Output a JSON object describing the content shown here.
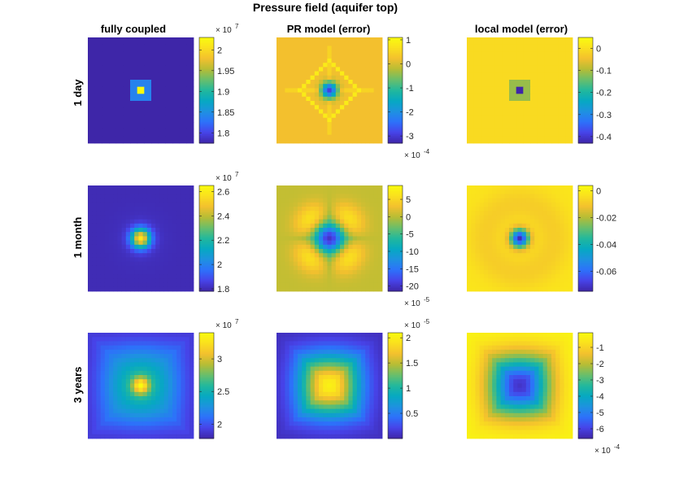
{
  "figure": {
    "title": "Pressure field (aquifer top)",
    "columns": [
      "fully coupled",
      "PR model (error)",
      "local model (error)"
    ],
    "rows": [
      "1 day",
      "1 month",
      "3 years"
    ]
  },
  "colormap": [
    "#3e26a8",
    "#4743e8",
    "#2d71fa",
    "#1e92e0",
    "#06a9c1",
    "#22b89c",
    "#6abe6b",
    "#b7bd34",
    "#f3c02e",
    "#fae01e",
    "#f9fb0e"
  ],
  "chart_data": [
    {
      "type": "heatmap",
      "row": 0,
      "col": 0,
      "title": "fully coupled",
      "row_label": "1 day",
      "grid": 15,
      "pattern": "spike",
      "cmin": 17750000.0,
      "cmax": 20300000.0,
      "ticks": [
        18000000.0,
        18500000.0,
        19000000.0,
        19500000.0,
        20000000.0
      ],
      "tick_labels": [
        "1.8",
        "1.85",
        "1.9",
        "1.95",
        "2"
      ],
      "exponent_label": "× 10",
      "exponent": "7",
      "exponent_pos": "top",
      "field": {
        "base": 0.0,
        "peak": 1.0,
        "sigma": 0.5,
        "ring": 0
      }
    },
    {
      "type": "heatmap",
      "row": 0,
      "col": 1,
      "title": "PR model (error)",
      "row_label": "1 day",
      "grid": 25,
      "pattern": "diamond",
      "cmin": -0.00033,
      "cmax": 0.00011,
      "ticks": [
        -0.0003,
        -0.0002,
        -0.0001,
        0,
        0.0001
      ],
      "tick_labels": [
        "-3",
        "-2",
        "-1",
        "0",
        "1"
      ],
      "exponent_label": "× 10",
      "exponent": "-4",
      "exponent_pos": "bottom",
      "field": {
        "base": 0.8,
        "peak": 0.08,
        "sigma": 0.9,
        "ring": 7
      }
    },
    {
      "type": "heatmap",
      "row": 0,
      "col": 2,
      "title": "local model (error)",
      "row_label": "1 day",
      "grid": 15,
      "pattern": "spike",
      "cmin": -0.43,
      "cmax": 0.05,
      "ticks": [
        -0.4,
        -0.3,
        -0.2,
        -0.1,
        0
      ],
      "tick_labels": [
        "-0.4",
        "-0.3",
        "-0.2",
        "-0.1",
        "0"
      ],
      "exponent_label": "",
      "exponent": "",
      "exponent_pos": "none",
      "field": {
        "base": 0.88,
        "peak": 0.0,
        "sigma": 0.5,
        "ring": 0
      }
    },
    {
      "type": "heatmap",
      "row": 1,
      "col": 0,
      "title": "fully coupled",
      "row_label": "1 month",
      "grid": 25,
      "pattern": "gauss",
      "cmin": 17800000.0,
      "cmax": 26500000.0,
      "ticks": [
        18000000.0,
        20000000.0,
        22000000.0,
        24000000.0,
        26000000.0
      ],
      "tick_labels": [
        "1.8",
        "2",
        "2.2",
        "2.4",
        "2.6"
      ],
      "exponent_label": "× 10",
      "exponent": "7",
      "exponent_pos": "top",
      "field": {
        "base": 0.02,
        "peak": 1.0,
        "sigma": 1.6,
        "ring": 0
      }
    },
    {
      "type": "heatmap",
      "row": 1,
      "col": 1,
      "title": "PR model (error)",
      "row_label": "1 month",
      "grid": 25,
      "pattern": "clover",
      "cmin": -0.000215,
      "cmax": 9e-05,
      "ticks": [
        -0.0002,
        -0.00015,
        -0.0001,
        -5e-05,
        0,
        5e-05
      ],
      "tick_labels": [
        "-20",
        "-15",
        "-10",
        "-5",
        "0",
        "5"
      ],
      "exponent_label": "× 10",
      "exponent": "-5",
      "exponent_pos": "bottom",
      "field": {
        "base": 0.72,
        "peak": 0.05,
        "sigma": 2.4,
        "ring": 6
      }
    },
    {
      "type": "heatmap",
      "row": 1,
      "col": 2,
      "title": "local model (error)",
      "row_label": "1 month",
      "grid": 25,
      "pattern": "gaussneg",
      "cmin": -0.075,
      "cmax": 0.004,
      "ticks": [
        -0.06,
        -0.04,
        -0.02,
        0
      ],
      "tick_labels": [
        "-0.06",
        "-0.04",
        "-0.02",
        "0"
      ],
      "exponent_label": "",
      "exponent": "",
      "exponent_pos": "none",
      "field": {
        "base": 0.92,
        "peak": 0.02,
        "sigma": 1.5,
        "ring": 8
      }
    },
    {
      "type": "heatmap",
      "row": 2,
      "col": 0,
      "title": "fully coupled",
      "row_label": "3 years",
      "grid": 25,
      "pattern": "broad",
      "cmin": 17800000.0,
      "cmax": 34000000.0,
      "ticks": [
        20000000.0,
        25000000.0,
        30000000.0
      ],
      "tick_labels": [
        "2",
        "2.5",
        "3"
      ],
      "exponent_label": "× 10",
      "exponent": "7",
      "exponent_pos": "top",
      "field": {
        "base": 0.05,
        "peak": 1.0,
        "sigma": 1.4,
        "ring": 8
      }
    },
    {
      "type": "heatmap",
      "row": 2,
      "col": 1,
      "title": "PR model (error)",
      "row_label": "3 years",
      "grid": 25,
      "pattern": "plateau",
      "cmin": 0.0,
      "cmax": 2.1e-05,
      "ticks": [
        5e-06,
        1e-05,
        1.5e-05,
        2e-05
      ],
      "tick_labels": [
        "0.5",
        "1",
        "1.5",
        "2"
      ],
      "exponent_label": "× 10",
      "exponent": "-5",
      "exponent_pos": "top",
      "field": {
        "base": 0.02,
        "peak": 0.96,
        "sigma": 7,
        "ring": 0
      }
    },
    {
      "type": "heatmap",
      "row": 2,
      "col": 2,
      "title": "local model (error)",
      "row_label": "3 years",
      "grid": 25,
      "pattern": "bowl",
      "cmin": -0.00066,
      "cmax": -1e-05,
      "ticks": [
        -0.0006,
        -0.0005,
        -0.0004,
        -0.0003,
        -0.0002,
        -0.0001
      ],
      "tick_labels": [
        "-6",
        "-5",
        "-4",
        "-3",
        "-2",
        "-1"
      ],
      "exponent_label": "× 10",
      "exponent": "-4",
      "exponent_pos": "bottom",
      "field": {
        "base": 0.98,
        "peak": 0.05,
        "sigma": 7,
        "ring": 0
      }
    }
  ]
}
